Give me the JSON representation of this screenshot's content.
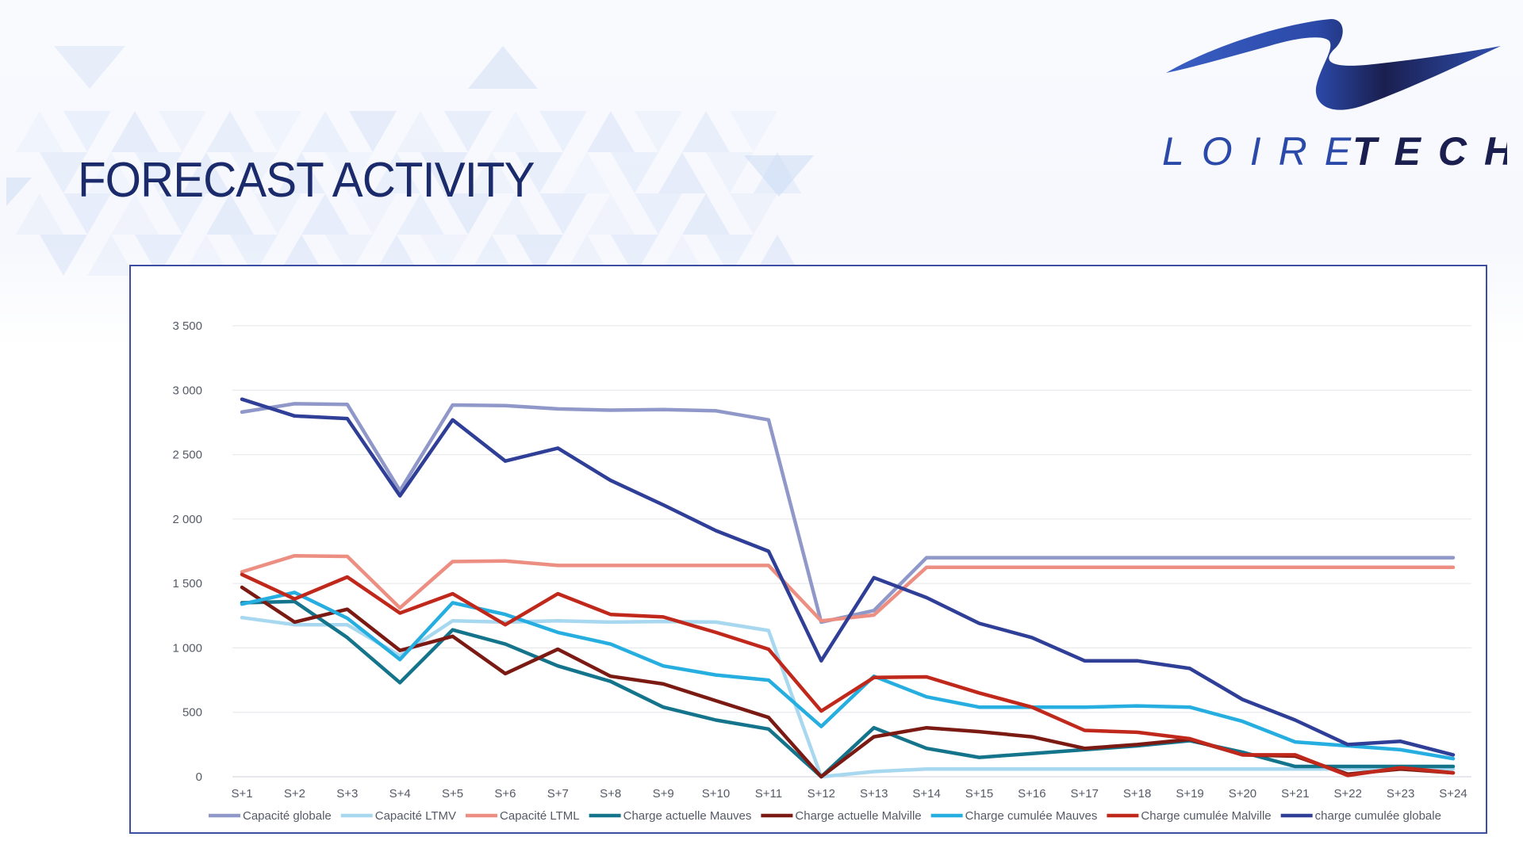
{
  "slide": {
    "title": "FORECAST ACTIVITY",
    "logo_text": {
      "part1": "LOIRE",
      "part2": "TECH"
    },
    "colors": {
      "title": "#1b2a6b",
      "logo_light": "#2b49a8",
      "logo_dark": "#1a1f4f",
      "frame": "#3d4fa3"
    }
  },
  "chart_data": {
    "type": "line",
    "title": "",
    "xlabel": "",
    "ylabel": "",
    "ylim": [
      0,
      3500
    ],
    "yticks": [
      0,
      500,
      1000,
      1500,
      2000,
      2500,
      3000,
      3500
    ],
    "ytick_labels": [
      "0",
      "500",
      "1 000",
      "1 500",
      "2 000",
      "2 500",
      "3 000",
      "3 500"
    ],
    "grid": true,
    "legend": "bottom",
    "categories": [
      "S+1",
      "S+2",
      "S+3",
      "S+4",
      "S+5",
      "S+6",
      "S+7",
      "S+8",
      "S+9",
      "S+10",
      "S+11",
      "S+12",
      "S+13",
      "S+14",
      "S+15",
      "S+16",
      "S+17",
      "S+18",
      "S+19",
      "S+20",
      "S+21",
      "S+22",
      "S+23",
      "S+24"
    ],
    "series": [
      {
        "name": "Capacité globale",
        "color": "#8f98c8",
        "values": [
          2830,
          2895,
          2890,
          2220,
          2885,
          2880,
          2855,
          2845,
          2850,
          2840,
          2770,
          1200,
          1290,
          1700,
          1700,
          1700,
          1700,
          1700,
          1700,
          1700,
          1700,
          1700,
          1700,
          1700
        ]
      },
      {
        "name": "Capacité LTMV",
        "color": "#a8d8ef",
        "values": [
          1235,
          1180,
          1180,
          940,
          1210,
          1200,
          1210,
          1200,
          1205,
          1200,
          1135,
          0,
          40,
          60,
          60,
          60,
          60,
          60,
          60,
          60,
          60,
          60,
          60,
          60
        ]
      },
      {
        "name": "Capacité LTML",
        "color": "#ec8f82",
        "values": [
          1590,
          1715,
          1710,
          1310,
          1670,
          1675,
          1640,
          1640,
          1640,
          1640,
          1640,
          1210,
          1255,
          1625,
          1625,
          1625,
          1625,
          1625,
          1625,
          1625,
          1625,
          1625,
          1625,
          1625
        ]
      },
      {
        "name": "Charge actuelle Mauves",
        "color": "#14748c",
        "values": [
          1350,
          1360,
          1080,
          730,
          1140,
          1030,
          860,
          740,
          540,
          440,
          370,
          0,
          380,
          220,
          150,
          180,
          210,
          240,
          280,
          190,
          80,
          80,
          80,
          80
        ]
      },
      {
        "name": "Charge actuelle Malville",
        "color": "#7a1a12",
        "values": [
          1470,
          1200,
          1300,
          980,
          1090,
          800,
          990,
          780,
          720,
          590,
          460,
          0,
          310,
          380,
          350,
          310,
          220,
          250,
          290,
          170,
          160,
          20,
          60,
          30
        ]
      },
      {
        "name": "Charge cumulée Mauves",
        "color": "#26aee0",
        "values": [
          1340,
          1430,
          1230,
          910,
          1350,
          1260,
          1120,
          1030,
          860,
          790,
          750,
          390,
          780,
          620,
          540,
          540,
          540,
          550,
          540,
          430,
          270,
          240,
          210,
          140
        ]
      },
      {
        "name": "Charge cumulée Malville",
        "color": "#c0281b",
        "values": [
          1570,
          1380,
          1550,
          1270,
          1420,
          1180,
          1420,
          1260,
          1240,
          1120,
          990,
          510,
          770,
          775,
          650,
          540,
          360,
          345,
          295,
          170,
          170,
          10,
          70,
          30
        ]
      },
      {
        "name": "charge cumulée globale",
        "color": "#2f3e96",
        "values": [
          2930,
          2800,
          2780,
          2180,
          2770,
          2450,
          2550,
          2300,
          2110,
          1910,
          1750,
          900,
          1545,
          1390,
          1190,
          1080,
          900,
          900,
          840,
          600,
          440,
          250,
          275,
          170
        ]
      }
    ]
  }
}
